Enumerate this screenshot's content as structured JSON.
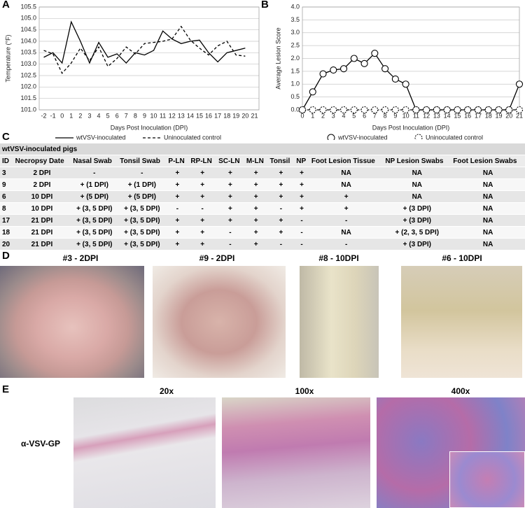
{
  "panel_labels": [
    "A",
    "B",
    "C",
    "D",
    "E"
  ],
  "chart_data": [
    {
      "type": "line",
      "x_label": "Days Post Inoculation (DPI)",
      "y_label": "Temperature (°F)",
      "categories": [
        -2,
        -1,
        0,
        1,
        2,
        3,
        4,
        5,
        6,
        7,
        8,
        9,
        10,
        11,
        12,
        13,
        14,
        15,
        16,
        17,
        18,
        19,
        20,
        21
      ],
      "series": [
        {
          "name": "wtVSV-inoculated",
          "color": "#000000",
          "style": "solid",
          "marker": "none",
          "values": [
            103.3,
            103.5,
            103.05,
            104.85,
            104.0,
            103.05,
            103.95,
            103.3,
            103.45,
            103.05,
            103.5,
            103.4,
            103.6,
            104.45,
            104.1,
            103.9,
            104.0,
            104.05,
            103.5,
            103.1,
            103.5,
            103.6,
            103.7,
            null
          ]
        },
        {
          "name": "Uninoculated control",
          "color": "#000000",
          "style": "dashed",
          "marker": "none",
          "values": [
            103.6,
            103.45,
            102.6,
            103.05,
            103.7,
            103.15,
            103.75,
            102.9,
            103.25,
            103.75,
            103.45,
            103.9,
            103.95,
            104.0,
            104.1,
            104.65,
            104.05,
            103.7,
            103.4,
            103.8,
            104.0,
            103.4,
            103.35,
            null
          ]
        }
      ],
      "ylim": [
        101,
        105.5
      ],
      "yticks": [
        {
          "value": 101,
          "label": "101.0"
        },
        101.5,
        {
          "value": 102,
          "label": "102.0"
        },
        102.5,
        {
          "value": 103,
          "label": "103.0"
        },
        103.5,
        {
          "value": 104,
          "label": "104.0"
        },
        104.5,
        {
          "value": 105,
          "label": "105.0"
        },
        105.5
      ],
      "grid": true
    },
    {
      "type": "line",
      "x_label": "Days Post Inoculation (DPI)",
      "y_label": "Average Lesion Score",
      "categories": [
        0,
        1,
        2,
        3,
        4,
        5,
        6,
        7,
        8,
        9,
        10,
        11,
        12,
        13,
        14,
        15,
        16,
        17,
        18,
        19,
        20,
        21
      ],
      "series": [
        {
          "name": "wtVSV-inoculated",
          "color": "#000000",
          "style": "solid",
          "marker": "circle",
          "values": [
            0,
            0.7,
            1.4,
            1.55,
            1.6,
            2.0,
            1.8,
            2.2,
            1.6,
            1.2,
            1.0,
            0,
            0,
            0,
            0,
            0,
            0,
            0,
            0,
            0,
            0,
            1.0
          ]
        },
        {
          "name": "Uninoculated control",
          "color": "#000000",
          "style": "dashed",
          "marker": "circle",
          "values": [
            0,
            0,
            0,
            0,
            0,
            0,
            0,
            0,
            0,
            0,
            0,
            0,
            0,
            0,
            0,
            0,
            0,
            0,
            0,
            0,
            0,
            0
          ]
        }
      ],
      "ylim": [
        0,
        4
      ],
      "yticks": [
        {
          "value": 0,
          "label": "0.0"
        },
        0.5,
        {
          "value": 1,
          "label": "1.0"
        },
        1.5,
        {
          "value": 2,
          "label": "2.0"
        },
        2.5,
        {
          "value": 3,
          "label": "3.0"
        },
        3.5,
        {
          "value": 4,
          "label": "4.0"
        }
      ],
      "grid": true
    }
  ],
  "table": {
    "title": "wtVSV-inoculated pigs",
    "columns": [
      "ID",
      "Necropsy Date",
      "Nasal Swab",
      "Tonsil Swab",
      "P-LN",
      "RP-LN",
      "SC-LN",
      "M-LN",
      "Tonsil",
      "NP",
      "Foot Lesion Tissue",
      "NP Lesion Swabs",
      "Foot Lesion Swabs"
    ],
    "rows": [
      [
        "3",
        "2 DPI",
        "-",
        "-",
        "+",
        "+",
        "+",
        "+",
        "+",
        "+",
        "NA",
        "NA",
        "NA"
      ],
      [
        "9",
        "2 DPI",
        "+ (1 DPI)",
        "+ (1 DPI)",
        "+",
        "+",
        "+",
        "+",
        "+",
        "+",
        "NA",
        "NA",
        "NA"
      ],
      [
        "6",
        "10 DPI",
        "+ (5 DPI)",
        "+ (5 DPI)",
        "+",
        "+",
        "+",
        "+",
        "+",
        "+",
        "+",
        "NA",
        "NA"
      ],
      [
        "8",
        "10 DPI",
        "+ (3, 5 DPI)",
        "+ (3, 5 DPI)",
        "-",
        "-",
        "+",
        "+",
        "-",
        "+",
        "+",
        "+ (3 DPI)",
        "NA"
      ],
      [
        "17",
        "21 DPI",
        "+ (3, 5 DPI)",
        "+ (3, 5 DPI)",
        "+",
        "+",
        "+",
        "+",
        "+",
        "-",
        "-",
        "+ (3 DPI)",
        "NA"
      ],
      [
        "18",
        "21 DPI",
        "+ (3, 5 DPI)",
        "+ (3, 5 DPI)",
        "+",
        "+",
        "-",
        "+",
        "+",
        "-",
        "NA",
        "+ (2, 3, 5 DPI)",
        "NA"
      ],
      [
        "20",
        "21 DPI",
        "+ (3, 5 DPI)",
        "+ (3, 5 DPI)",
        "+",
        "+",
        "-",
        "+",
        "-",
        "-",
        "-",
        "+ (3 DPI)",
        "NA"
      ]
    ]
  },
  "photos": {
    "labels": [
      "#3 - 2DPI",
      "#9 - 2DPI",
      "#8 - 10DPI",
      "#6 - 10DPI"
    ]
  },
  "histology": {
    "magnifications": [
      "20x",
      "100x",
      "400x"
    ],
    "stain_label": "α-VSV-GP"
  }
}
